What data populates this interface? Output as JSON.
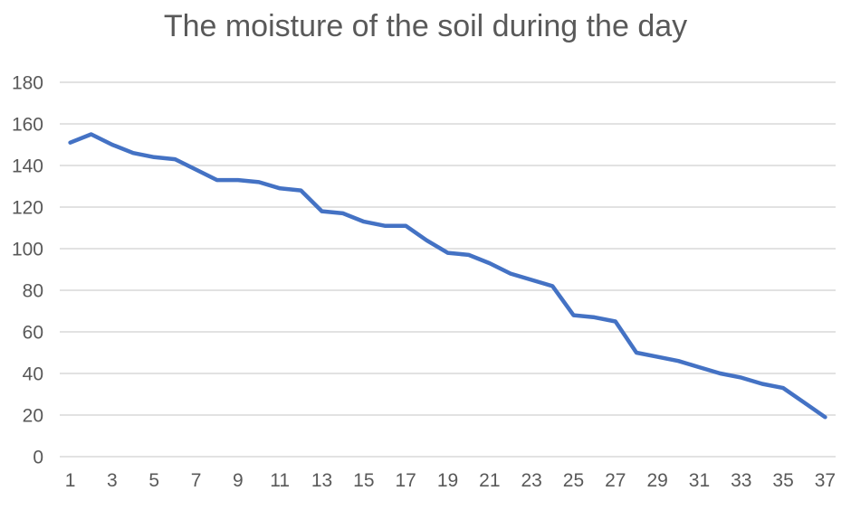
{
  "title": "The moisture of the soil during the day",
  "colors": {
    "series": "#4472C4",
    "gridline": "#D9D9D9",
    "axis_label": "#595959",
    "title": "#595959",
    "background": "#FFFFFF"
  },
  "chart_data": {
    "type": "line",
    "title": "The moisture of the soil during the day",
    "x": [
      1,
      2,
      3,
      4,
      5,
      6,
      7,
      8,
      9,
      10,
      11,
      12,
      13,
      14,
      15,
      16,
      17,
      18,
      19,
      20,
      21,
      22,
      23,
      24,
      25,
      26,
      27,
      28,
      29,
      30,
      31,
      32,
      33,
      34,
      35,
      36,
      37
    ],
    "series": [
      {
        "name": "",
        "values": [
          151,
          155,
          150,
          146,
          144,
          143,
          138,
          133,
          133,
          132,
          129,
          128,
          118,
          117,
          113,
          111,
          111,
          104,
          98,
          97,
          93,
          88,
          85,
          82,
          68,
          67,
          65,
          50,
          48,
          46,
          43,
          40,
          38,
          35,
          33,
          26,
          19
        ]
      }
    ],
    "xlabel": "",
    "ylabel": "",
    "ylim": [
      0,
      180
    ],
    "ytick_interval": 20,
    "ytick_labels": [
      "0",
      "20",
      "40",
      "60",
      "80",
      "100",
      "120",
      "140",
      "160",
      "180"
    ],
    "xtick_labels": [
      "1",
      "3",
      "5",
      "7",
      "9",
      "11",
      "13",
      "15",
      "17",
      "19",
      "21",
      "23",
      "25",
      "27",
      "29",
      "31",
      "33",
      "35",
      "37"
    ],
    "grid": "horizontal",
    "legend": "none"
  }
}
